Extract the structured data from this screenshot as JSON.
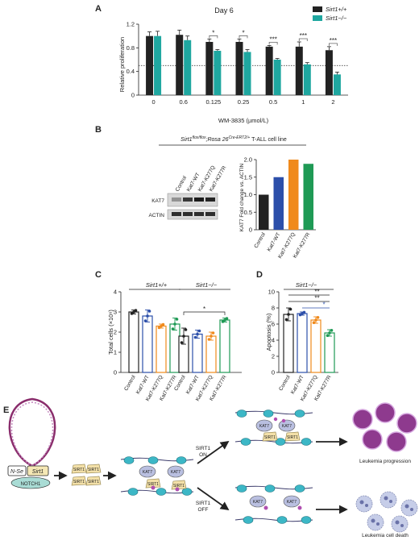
{
  "colors": {
    "black": "#222222",
    "teal": "#1fa7a0",
    "blue": "#2c4faa",
    "orange": "#f08a1c",
    "green": "#1f9a55",
    "gray": "#9a9a9a"
  },
  "panels": {
    "A": "A",
    "B": "B",
    "C": "C",
    "D": "D",
    "E": "E"
  },
  "chart_data": [
    {
      "type": "bar",
      "panel": "A",
      "title": "Day 6",
      "xlabel": "WM-3835 (µmol/L)",
      "ylabel": "Relative proliferation",
      "categories": [
        "0",
        "0.6",
        "0.125",
        "0.25",
        "0.5",
        "1",
        "2"
      ],
      "ylim": [
        0,
        1.2
      ],
      "yticks": [
        "0",
        "0.4",
        "0.8",
        "1.2"
      ],
      "series": [
        {
          "name": "Sirt1+/+",
          "values": [
            1.0,
            1.02,
            0.9,
            0.9,
            0.82,
            0.82,
            0.76
          ],
          "errors": [
            0.07,
            0.08,
            0.05,
            0.05,
            0.02,
            0.08,
            0.06
          ]
        },
        {
          "name": "Sirt1−/−",
          "values": [
            1.0,
            0.93,
            0.75,
            0.73,
            0.6,
            0.52,
            0.35
          ],
          "errors": [
            0.08,
            0.07,
            0.02,
            0.04,
            0.02,
            0.03,
            0.04
          ]
        }
      ],
      "reference_line": 0.5,
      "significance": [
        "",
        "",
        "*",
        "*",
        "***",
        "***",
        "***"
      ],
      "legend_position": "top-right"
    },
    {
      "type": "bar",
      "panel": "B",
      "ylabel": "KAT7 Fold change vs. ACTIN",
      "categories": [
        "Control",
        "Kat7-WT",
        "Kat7-K277Q",
        "Kat7-K277R"
      ],
      "values": [
        1.0,
        1.5,
        2.0,
        1.88
      ],
      "ylim": [
        0,
        2.0
      ],
      "yticks": [
        "0",
        "0.5",
        "1.0",
        "1.5",
        "2.0"
      ]
    },
    {
      "type": "bar",
      "panel": "C",
      "ylabel": "Total cells (×10⁶)",
      "groups": [
        "Sirt1+/+",
        "Sirt1−/−"
      ],
      "categories": [
        "Control",
        "Kat7-WT",
        "Kat7-K277Q",
        "Kat7-K277R"
      ],
      "ylim": [
        0,
        4
      ],
      "yticks": [
        "0",
        "1",
        "2",
        "3",
        "4"
      ],
      "series": [
        {
          "group": "Sirt1+/+",
          "values": [
            3.0,
            2.8,
            2.3,
            2.4
          ],
          "errors": [
            0.1,
            0.3,
            0.1,
            0.3
          ]
        },
        {
          "group": "Sirt1−/−",
          "values": [
            1.8,
            1.9,
            1.8,
            2.6
          ],
          "errors": [
            0.4,
            0.2,
            0.2,
            0.1
          ]
        }
      ],
      "significance": [
        "*"
      ]
    },
    {
      "type": "bar",
      "panel": "D",
      "title": "Sirt1−/−",
      "ylabel": "Apoptosis (%)",
      "categories": [
        "Control",
        "Kat7-WT",
        "Kat7-K277Q",
        "Kat7-K277R"
      ],
      "values": [
        7.2,
        7.3,
        6.5,
        4.9
      ],
      "errors": [
        0.8,
        0.2,
        0.4,
        0.4
      ],
      "ylim": [
        0,
        10
      ],
      "yticks": [
        "0",
        "2",
        "4",
        "6",
        "8",
        "10"
      ],
      "significance": [
        "**",
        "**",
        "*"
      ]
    }
  ],
  "blot": {
    "title": "Sirt1flox/flox;Rosa 26Cre-ERT2/+ T-ALL cell line",
    "title_parts": [
      "Sirt1",
      "flox/flox",
      ";Rosa 26",
      "Cre-ERT2/+",
      " T-ALL cell line"
    ],
    "lanes": [
      "Control",
      "Kat7-WT",
      "Kat7-K277Q",
      "Kat7-K277R"
    ],
    "rows": [
      "KAT7",
      "ACTIN"
    ]
  },
  "schematic": {
    "promoter": "N-Se",
    "gene": "Sirt1",
    "tf": "NOTCH1",
    "protein": "SIRT1",
    "acetyl": "KAT7",
    "on_label": [
      "SIRT1",
      "ON"
    ],
    "off_label": [
      "SIRT1",
      "OFF"
    ],
    "outcome_on": "Leukemia progression",
    "outcome_off": "Leukemia cell death"
  }
}
